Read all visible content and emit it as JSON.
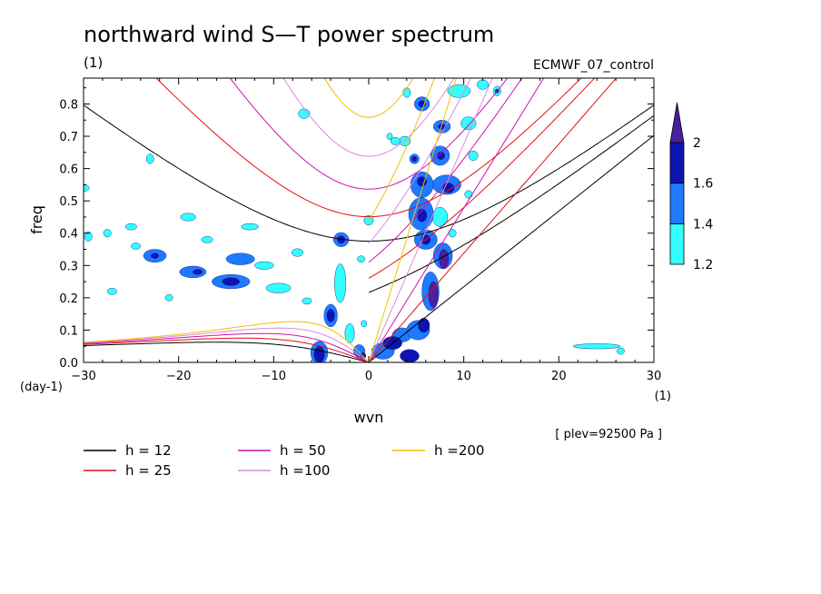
{
  "chart_data": {
    "type": "heatmap",
    "title": "northward wind S—T power spectrum",
    "units_label": "(1)",
    "model_label": "ECMWF_07_control",
    "plev_label": "[ plev=92500 Pa ]",
    "xlabel": "wvn",
    "ylabel": "freq",
    "x_units": "(1)",
    "y_units": "(day-1)",
    "xlim": [
      -30,
      30
    ],
    "ylim": [
      0,
      0.88
    ],
    "x_ticks": [
      -30,
      -20,
      -10,
      0,
      10,
      20,
      30
    ],
    "x_tick_labels": [
      "−30",
      "−20",
      "−10",
      "0",
      "10",
      "20",
      "30"
    ],
    "y_ticks": [
      0,
      0.1,
      0.2,
      0.3,
      0.4,
      0.5,
      0.6,
      0.7,
      0.8
    ],
    "y_tick_labels": [
      "0.0",
      "0.1",
      "0.2",
      "0.3",
      "0.4",
      "0.5",
      "0.6",
      "0.7",
      "0.8"
    ],
    "colorbar": {
      "levels": [
        1.2,
        1.4,
        1.6,
        2
      ],
      "level_labels": [
        "1.2",
        "1.4",
        "1.6",
        "2"
      ],
      "colors": [
        "#33ffff",
        "#1e7bff",
        "#0d14b0",
        "#4a1fa0"
      ]
    },
    "dispersion_curves": [
      {
        "h": 12,
        "label": "h = 12",
        "color": "#000000"
      },
      {
        "h": 25,
        "label": "h = 25",
        "color": "#e01010"
      },
      {
        "h": 50,
        "label": "h = 50",
        "color": "#d010b0"
      },
      {
        "h": 100,
        "label": "h =100",
        "color": "#dd88dd"
      },
      {
        "h": 200,
        "label": "h =200",
        "color": "#f0c000"
      }
    ],
    "contour_blobs": [
      {
        "x": -30.2,
        "y": 0.54,
        "rx": 0.8,
        "ry": 0.012,
        "level": 1
      },
      {
        "x": -29.5,
        "y": 0.39,
        "rx": 0.4,
        "ry": 0.015,
        "level": 1
      },
      {
        "x": -27.5,
        "y": 0.4,
        "rx": 0.4,
        "ry": 0.012,
        "level": 1
      },
      {
        "x": -25.0,
        "y": 0.42,
        "rx": 0.6,
        "ry": 0.01,
        "level": 1
      },
      {
        "x": -24.5,
        "y": 0.36,
        "rx": 0.5,
        "ry": 0.01,
        "level": 1
      },
      {
        "x": -23.0,
        "y": 0.63,
        "rx": 0.4,
        "ry": 0.015,
        "level": 1
      },
      {
        "x": -22.5,
        "y": 0.33,
        "rx": 1.2,
        "ry": 0.02,
        "level": 2
      },
      {
        "x": -22.5,
        "y": 0.33,
        "rx": 0.4,
        "ry": 0.008,
        "level": 3
      },
      {
        "x": -19.0,
        "y": 0.45,
        "rx": 0.8,
        "ry": 0.012,
        "level": 1
      },
      {
        "x": -18.5,
        "y": 0.28,
        "rx": 1.4,
        "ry": 0.018,
        "level": 2
      },
      {
        "x": -18.0,
        "y": 0.28,
        "rx": 0.5,
        "ry": 0.008,
        "level": 3
      },
      {
        "x": -17.0,
        "y": 0.38,
        "rx": 0.6,
        "ry": 0.01,
        "level": 1
      },
      {
        "x": -14.5,
        "y": 0.25,
        "rx": 2.0,
        "ry": 0.022,
        "level": 2
      },
      {
        "x": -14.5,
        "y": 0.25,
        "rx": 0.9,
        "ry": 0.012,
        "level": 3
      },
      {
        "x": -13.5,
        "y": 0.32,
        "rx": 1.5,
        "ry": 0.018,
        "level": 2
      },
      {
        "x": -12.5,
        "y": 0.42,
        "rx": 0.9,
        "ry": 0.01,
        "level": 1
      },
      {
        "x": -11.0,
        "y": 0.3,
        "rx": 1.0,
        "ry": 0.012,
        "level": 1
      },
      {
        "x": -9.5,
        "y": 0.23,
        "rx": 1.3,
        "ry": 0.015,
        "level": 1
      },
      {
        "x": -7.5,
        "y": 0.34,
        "rx": 0.6,
        "ry": 0.012,
        "level": 1
      },
      {
        "x": -6.5,
        "y": 0.19,
        "rx": 0.5,
        "ry": 0.01,
        "level": 1
      },
      {
        "x": -27.0,
        "y": 0.22,
        "rx": 0.5,
        "ry": 0.01,
        "level": 1
      },
      {
        "x": -21.0,
        "y": 0.2,
        "rx": 0.4,
        "ry": 0.01,
        "level": 1
      },
      {
        "x": -5.2,
        "y": 0.03,
        "rx": 0.9,
        "ry": 0.035,
        "level": 2
      },
      {
        "x": -5.2,
        "y": 0.025,
        "rx": 0.55,
        "ry": 0.025,
        "level": 3
      },
      {
        "x": -4.0,
        "y": 0.145,
        "rx": 0.7,
        "ry": 0.035,
        "level": 2
      },
      {
        "x": -4.0,
        "y": 0.145,
        "rx": 0.4,
        "ry": 0.02,
        "level": 3
      },
      {
        "x": -3.0,
        "y": 0.245,
        "rx": 0.6,
        "ry": 0.06,
        "level": 1
      },
      {
        "x": -2.9,
        "y": 0.38,
        "rx": 0.8,
        "ry": 0.022,
        "level": 2
      },
      {
        "x": -2.9,
        "y": 0.38,
        "rx": 0.4,
        "ry": 0.012,
        "level": 3
      },
      {
        "x": -2.0,
        "y": 0.09,
        "rx": 0.5,
        "ry": 0.03,
        "level": 1
      },
      {
        "x": -1.0,
        "y": 0.035,
        "rx": 0.6,
        "ry": 0.02,
        "level": 2
      },
      {
        "x": -0.6,
        "y": 0.02,
        "rx": 0.3,
        "ry": 0.01,
        "level": 3
      },
      {
        "x": -0.8,
        "y": 0.32,
        "rx": 0.4,
        "ry": 0.01,
        "level": 1
      },
      {
        "x": -0.5,
        "y": 0.12,
        "rx": 0.3,
        "ry": 0.01,
        "level": 1
      },
      {
        "x": 0.0,
        "y": 0.44,
        "rx": 0.5,
        "ry": 0.015,
        "level": 1
      },
      {
        "x": 1.5,
        "y": 0.035,
        "rx": 1.2,
        "ry": 0.025,
        "level": 2
      },
      {
        "x": 2.5,
        "y": 0.06,
        "rx": 1.0,
        "ry": 0.02,
        "level": 3
      },
      {
        "x": 3.5,
        "y": 0.085,
        "rx": 1.0,
        "ry": 0.022,
        "level": 2
      },
      {
        "x": 4.3,
        "y": 0.02,
        "rx": 1.0,
        "ry": 0.02,
        "level": 3
      },
      {
        "x": 5.2,
        "y": 0.1,
        "rx": 1.2,
        "ry": 0.03,
        "level": 2
      },
      {
        "x": 5.8,
        "y": 0.115,
        "rx": 0.6,
        "ry": 0.022,
        "level": 3
      },
      {
        "x": 6.5,
        "y": 0.22,
        "rx": 0.9,
        "ry": 0.06,
        "level": 2
      },
      {
        "x": 6.8,
        "y": 0.21,
        "rx": 0.5,
        "ry": 0.04,
        "level": 4
      },
      {
        "x": 7.8,
        "y": 0.33,
        "rx": 1.0,
        "ry": 0.04,
        "level": 2
      },
      {
        "x": 7.9,
        "y": 0.32,
        "rx": 0.5,
        "ry": 0.03,
        "level": 4
      },
      {
        "x": 6.0,
        "y": 0.38,
        "rx": 1.2,
        "ry": 0.03,
        "level": 2
      },
      {
        "x": 6.0,
        "y": 0.38,
        "rx": 0.5,
        "ry": 0.015,
        "level": 3
      },
      {
        "x": 5.5,
        "y": 0.46,
        "rx": 1.3,
        "ry": 0.05,
        "level": 2
      },
      {
        "x": 5.6,
        "y": 0.455,
        "rx": 0.5,
        "ry": 0.02,
        "level": 3
      },
      {
        "x": 7.5,
        "y": 0.45,
        "rx": 0.8,
        "ry": 0.03,
        "level": 1
      },
      {
        "x": 8.2,
        "y": 0.55,
        "rx": 1.5,
        "ry": 0.03,
        "level": 2
      },
      {
        "x": 8.4,
        "y": 0.54,
        "rx": 0.6,
        "ry": 0.015,
        "level": 3
      },
      {
        "x": 5.6,
        "y": 0.55,
        "rx": 1.2,
        "ry": 0.04,
        "level": 2
      },
      {
        "x": 5.6,
        "y": 0.56,
        "rx": 0.5,
        "ry": 0.015,
        "level": 3
      },
      {
        "x": 7.5,
        "y": 0.64,
        "rx": 1.0,
        "ry": 0.03,
        "level": 2
      },
      {
        "x": 7.6,
        "y": 0.64,
        "rx": 0.4,
        "ry": 0.012,
        "level": 3
      },
      {
        "x": 4.8,
        "y": 0.63,
        "rx": 0.5,
        "ry": 0.015,
        "level": 2
      },
      {
        "x": 4.8,
        "y": 0.63,
        "rx": 0.25,
        "ry": 0.008,
        "level": 3
      },
      {
        "x": 3.8,
        "y": 0.685,
        "rx": 0.6,
        "ry": 0.015,
        "level": 1
      },
      {
        "x": 2.8,
        "y": 0.685,
        "rx": 0.5,
        "ry": 0.012,
        "level": 1
      },
      {
        "x": 7.7,
        "y": 0.73,
        "rx": 0.9,
        "ry": 0.02,
        "level": 2
      },
      {
        "x": 7.7,
        "y": 0.73,
        "rx": 0.4,
        "ry": 0.008,
        "level": 3
      },
      {
        "x": 5.6,
        "y": 0.8,
        "rx": 0.8,
        "ry": 0.022,
        "level": 2
      },
      {
        "x": 5.6,
        "y": 0.8,
        "rx": 0.35,
        "ry": 0.01,
        "level": 3
      },
      {
        "x": 4.0,
        "y": 0.835,
        "rx": 0.4,
        "ry": 0.015,
        "level": 1
      },
      {
        "x": 9.5,
        "y": 0.84,
        "rx": 1.2,
        "ry": 0.02,
        "level": 1
      },
      {
        "x": 11.0,
        "y": 0.64,
        "rx": 0.5,
        "ry": 0.015,
        "level": 1
      },
      {
        "x": 10.5,
        "y": 0.74,
        "rx": 0.8,
        "ry": 0.02,
        "level": 1
      },
      {
        "x": 12.0,
        "y": 0.86,
        "rx": 0.6,
        "ry": 0.015,
        "level": 1
      },
      {
        "x": 13.5,
        "y": 0.84,
        "rx": 0.4,
        "ry": 0.015,
        "level": 1
      },
      {
        "x": 13.5,
        "y": 0.84,
        "rx": 0.2,
        "ry": 0.006,
        "level": 3
      },
      {
        "x": 10.5,
        "y": 0.52,
        "rx": 0.4,
        "ry": 0.012,
        "level": 1
      },
      {
        "x": -6.8,
        "y": 0.77,
        "rx": 0.6,
        "ry": 0.015,
        "level": 1
      },
      {
        "x": 2.2,
        "y": 0.7,
        "rx": 0.3,
        "ry": 0.01,
        "level": 1
      },
      {
        "x": 8.8,
        "y": 0.4,
        "rx": 0.4,
        "ry": 0.012,
        "level": 1
      },
      {
        "x": 24.0,
        "y": 0.05,
        "rx": 2.5,
        "ry": 0.008,
        "level": 1
      },
      {
        "x": 26.5,
        "y": 0.035,
        "rx": 0.4,
        "ry": 0.01,
        "level": 1
      }
    ]
  }
}
